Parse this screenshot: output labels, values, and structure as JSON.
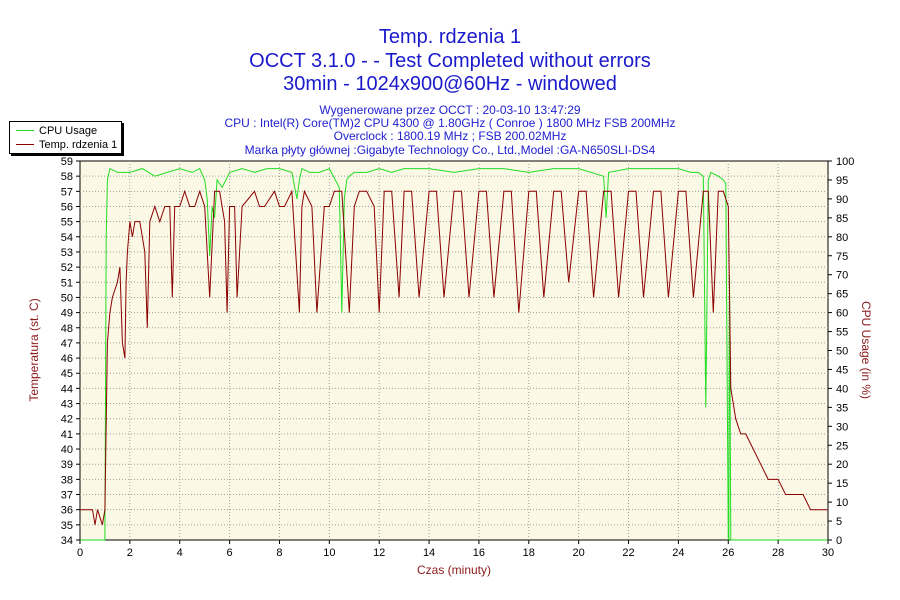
{
  "titles": {
    "line1": "Temp. rdzenia 1",
    "line2": "OCCT 3.1.0 -  - Test Completed without errors",
    "line3": "30min - 1024x900@60Hz - windowed"
  },
  "info": {
    "line1": "Wygenerowane przez OCCT : 20-03-10 13:47:29",
    "line2": "CPU : Intel(R) Core(TM)2 CPU 4300 @ 1.80GHz ( Conroe ) 1800 MHz FSB 200MHz",
    "line3": "Overclock : 1800.19 MHz ; FSB 200.02MHz",
    "line4": "Marka płyty głównej :Gigabyte Technology Co., Ltd.,Model :GA-N650SLI-DS4"
  },
  "colors": {
    "cpu_usage": "#22dd22",
    "temperature": "#8b0000",
    "plot_background": "#fbf8e6",
    "grid": "#a0a0a0",
    "axis_label_left": "#8b1a1a",
    "axis_label_right": "#8b1a1a",
    "x_label": "#8b1a1a"
  },
  "chart_data": {
    "type": "line",
    "xlabel": "Czas (minuty)",
    "ylabel_left": "Temperatura (st. C)",
    "ylabel_right": "CPU Usage (in %)",
    "xlim": [
      0,
      30
    ],
    "ylim_left": [
      34,
      59
    ],
    "ylim_right": [
      0,
      100
    ],
    "grid": true,
    "legend_position": "top-left",
    "x_ticks": [
      0,
      2,
      4,
      6,
      8,
      10,
      12,
      14,
      16,
      18,
      20,
      22,
      24,
      26,
      28,
      30
    ],
    "y_left_ticks": [
      34,
      35,
      36,
      37,
      38,
      39,
      40,
      41,
      42,
      43,
      44,
      45,
      46,
      47,
      48,
      49,
      50,
      51,
      52,
      53,
      54,
      55,
      56,
      57,
      58,
      59
    ],
    "y_right_ticks": [
      0,
      5,
      10,
      15,
      20,
      25,
      30,
      35,
      40,
      45,
      50,
      55,
      60,
      65,
      70,
      75,
      80,
      85,
      90,
      95,
      100
    ],
    "series": [
      {
        "name": "CPU Usage",
        "axis": "right",
        "x": [
          0,
          0.8,
          1.0,
          1.05,
          1.1,
          1.2,
          1.5,
          2,
          2.5,
          3,
          3.5,
          4,
          4.5,
          4.8,
          5.0,
          5.1,
          5.2,
          5.3,
          5.4,
          5.5,
          5.7,
          6,
          6.5,
          7,
          7.5,
          8,
          8.5,
          8.7,
          8.8,
          8.9,
          9.2,
          9.6,
          10,
          10.4,
          10.5,
          10.6,
          10.7,
          10.8,
          11,
          11.5,
          12,
          12.5,
          13,
          14,
          15,
          16,
          17,
          18,
          19,
          20,
          21,
          21.1,
          21.2,
          22,
          23,
          24,
          24.5,
          24.8,
          25.0,
          25.1,
          25.2,
          25.3,
          25.6,
          25.8,
          25.9,
          26.0,
          26.02,
          26.05,
          26.1,
          26.15,
          27,
          28,
          29,
          30
        ],
        "y": [
          0,
          0,
          0,
          80,
          95,
          98,
          97,
          97,
          98,
          96,
          97,
          98,
          97,
          98,
          95,
          90,
          75,
          88,
          85,
          95,
          93,
          97,
          98,
          97,
          98,
          98,
          97,
          90,
          95,
          98,
          97,
          97,
          98,
          93,
          60,
          90,
          95,
          96,
          97,
          97,
          98,
          97,
          98,
          98,
          97,
          98,
          98,
          97,
          98,
          98,
          96,
          85,
          97,
          98,
          98,
          98,
          97,
          97,
          96,
          35,
          95,
          97,
          96,
          95,
          94,
          0,
          0,
          70,
          0,
          0,
          0,
          0,
          0,
          0
        ]
      },
      {
        "name": "Temp. rdzenia 1",
        "axis": "left",
        "x": [
          0,
          0.5,
          0.6,
          0.7,
          0.9,
          1.0,
          1.1,
          1.2,
          1.3,
          1.5,
          1.6,
          1.7,
          1.8,
          1.85,
          1.9,
          2.0,
          2.1,
          2.2,
          2.4,
          2.6,
          2.7,
          2.8,
          3.0,
          3.2,
          3.4,
          3.6,
          3.7,
          3.8,
          4.0,
          4.2,
          4.4,
          4.6,
          4.8,
          5.0,
          5.2,
          5.4,
          5.6,
          5.8,
          5.9,
          6.0,
          6.2,
          6.3,
          6.5,
          7.0,
          7.2,
          7.4,
          7.8,
          8.0,
          8.2,
          8.5,
          8.8,
          8.9,
          9.0,
          9.3,
          9.5,
          9.8,
          10.0,
          10.2,
          10.5,
          10.8,
          11.0,
          11.2,
          11.5,
          11.8,
          12.0,
          12.2,
          12.5,
          12.8,
          13.0,
          13.3,
          13.6,
          14.0,
          14.3,
          14.6,
          15.0,
          15.3,
          15.6,
          16.0,
          16.3,
          16.6,
          17.0,
          17.3,
          17.6,
          18.0,
          18.3,
          18.6,
          19.0,
          19.3,
          19.6,
          20.0,
          20.3,
          20.6,
          21.0,
          21.3,
          21.6,
          22.0,
          22.3,
          22.6,
          23.0,
          23.3,
          23.6,
          24.0,
          24.3,
          24.6,
          25.0,
          25.2,
          25.4,
          25.6,
          25.8,
          26.0,
          26.1,
          26.2,
          26.3,
          26.5,
          26.7,
          27.0,
          27.3,
          27.6,
          28.0,
          28.3,
          28.6,
          29.0,
          29.3,
          29.6,
          30.0
        ],
        "y": [
          36,
          36,
          35,
          36,
          35,
          36,
          47,
          49,
          50,
          51,
          52,
          47,
          46,
          51,
          53,
          55,
          54,
          55,
          55,
          53,
          48,
          55,
          56,
          55,
          56,
          56,
          50,
          56,
          56,
          57,
          56,
          56,
          57,
          56,
          50,
          57,
          57,
          55,
          49,
          56,
          56,
          50,
          56,
          57,
          56,
          56,
          57,
          56,
          56,
          57,
          49,
          56,
          57,
          56,
          49,
          56,
          56,
          57,
          57,
          49,
          56,
          57,
          57,
          56,
          49,
          57,
          57,
          50,
          57,
          57,
          50,
          57,
          57,
          50,
          57,
          57,
          50,
          57,
          57,
          50,
          57,
          57,
          49,
          57,
          57,
          50,
          57,
          57,
          51,
          57,
          57,
          50,
          57,
          57,
          50,
          57,
          57,
          50,
          57,
          57,
          50,
          57,
          57,
          50,
          57,
          57,
          49,
          57,
          57,
          56,
          44,
          43,
          42,
          41,
          41,
          40,
          39,
          38,
          38,
          37,
          37,
          37,
          36,
          36,
          36
        ]
      }
    ]
  }
}
